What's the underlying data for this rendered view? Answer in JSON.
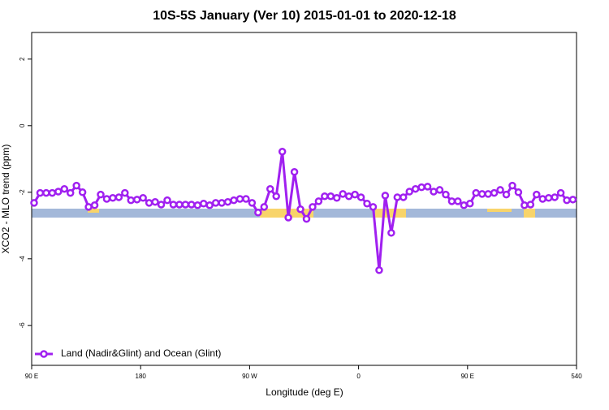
{
  "chart_data": {
    "type": "line",
    "title": "10S-5S January (Ver 10)   2015-01-01 to 2020-12-18",
    "x_label": "Longitude (deg E)",
    "y_label": "XCO2 - MLO trend (ppm)",
    "x": [
      92,
      97,
      102,
      107,
      112,
      117,
      122,
      127,
      132,
      137,
      142,
      147,
      152,
      157,
      162,
      167,
      172,
      177,
      182,
      187,
      192,
      197,
      202,
      207,
      212,
      217,
      222,
      227,
      232,
      237,
      242,
      247,
      252,
      257,
      262,
      267,
      272,
      277,
      282,
      287,
      292,
      297,
      302,
      307,
      312,
      317,
      322,
      327,
      332,
      337,
      342,
      347,
      352,
      357,
      362,
      367,
      372,
      377,
      382,
      387,
      392,
      397,
      402,
      407,
      412,
      417,
      422,
      427,
      432,
      437,
      442,
      447,
      452,
      457,
      462,
      467,
      472,
      477,
      482,
      487,
      492,
      497,
      502,
      507,
      512,
      517,
      522,
      527,
      532,
      537
    ],
    "series": [
      {
        "name": "Land (Nadir&Glint) and Ocean (Glint)",
        "color": "#a020f0",
        "values": [
          -2.32,
          -2.02,
          -2.02,
          -2.02,
          -1.98,
          -1.9,
          -2.02,
          -1.8,
          -2.0,
          -2.44,
          -2.39,
          -2.07,
          -2.2,
          -2.17,
          -2.15,
          -2.02,
          -2.24,
          -2.22,
          -2.17,
          -2.32,
          -2.29,
          -2.37,
          -2.24,
          -2.37,
          -2.37,
          -2.37,
          -2.37,
          -2.39,
          -2.34,
          -2.39,
          -2.32,
          -2.32,
          -2.29,
          -2.24,
          -2.2,
          -2.2,
          -2.32,
          -2.61,
          -2.44,
          -1.9,
          -2.12,
          -0.78,
          -2.76,
          -1.39,
          -2.51,
          -2.8,
          -2.44,
          -2.27,
          -2.12,
          -2.12,
          -2.17,
          -2.05,
          -2.12,
          -2.07,
          -2.15,
          -2.34,
          -2.44,
          -4.34,
          -2.1,
          -3.22,
          -2.15,
          -2.15,
          -1.98,
          -1.9,
          -1.85,
          -1.83,
          -1.98,
          -1.93,
          -2.07,
          -2.27,
          -2.27,
          -2.39,
          -2.34,
          -2.02,
          -2.05,
          -2.05,
          -2.02,
          -1.93,
          -2.07,
          -1.8,
          -2.0,
          -2.39,
          -2.37,
          -2.07,
          -2.2,
          -2.17,
          -2.15,
          -2.02,
          -2.24,
          -2.22
        ]
      }
    ],
    "xlim": [
      90,
      540
    ],
    "xticks": [
      {
        "value": 90,
        "label": "90 E"
      },
      180,
      {
        "value": 270,
        "label": "90 W"
      },
      {
        "value": 360,
        "label": "0"
      },
      {
        "value": 450,
        "label": "90 E"
      },
      540
    ],
    "ylim": [
      -7.2,
      2.8
    ],
    "yticks": [
      -6,
      -4,
      -2,
      0,
      2
    ],
    "legend": "bottom-left"
  }
}
